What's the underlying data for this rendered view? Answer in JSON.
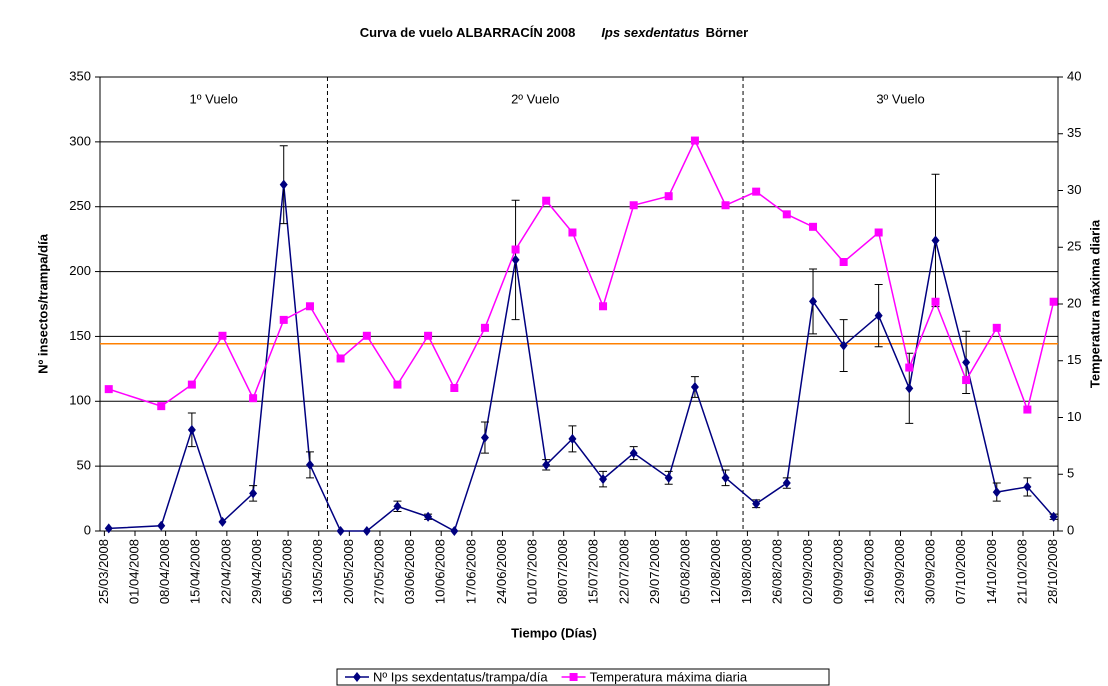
{
  "chart_data": {
    "type": "line",
    "title": "Curva de vuelo ALBARRACÍN 2008",
    "title_species": "Ips sexdentatus",
    "title_author": "Börner",
    "x_label": "Tiempo (Días)",
    "y_label": "Nº insectos/trampa/día",
    "y2_label": "Temperatura máxima diaria",
    "x": [
      "26/03/2008",
      "07/04/2008",
      "14/04/2008",
      "21/04/2008",
      "28/04/2008",
      "05/05/2008",
      "11/05/2008",
      "18/05/2008",
      "24/05/2008",
      "31/05/2008",
      "07/06/2008",
      "13/06/2008",
      "20/06/2008",
      "27/06/2008",
      "04/07/2008",
      "10/07/2008",
      "17/07/2008",
      "24/07/2008",
      "01/08/2008",
      "07/08/2008",
      "14/08/2008",
      "21/08/2008",
      "28/08/2008",
      "03/09/2008",
      "10/09/2008",
      "18/09/2008",
      "25/09/2008",
      "01/10/2008",
      "08/10/2008",
      "15/10/2008",
      "22/10/2008",
      "28/10/2008"
    ],
    "series": [
      {
        "name": "Nº Ips sexdentatus/trampa/día",
        "color": "#000080",
        "marker": "diamond",
        "values": [
          2,
          4,
          78,
          7,
          29,
          267,
          51,
          0,
          0,
          19,
          11,
          0,
          72,
          209,
          51,
          71,
          40,
          60,
          41,
          111,
          41,
          21,
          37,
          177,
          143,
          166,
          110,
          224,
          130,
          30,
          34,
          11
        ],
        "errors": [
          0,
          0,
          13,
          0,
          6,
          30,
          10,
          0,
          0,
          4,
          2,
          0,
          12,
          46,
          4,
          10,
          6,
          5,
          5,
          8,
          6,
          3,
          4,
          25,
          20,
          24,
          27,
          51,
          24,
          7,
          7,
          2
        ]
      },
      {
        "name": "Temperatura máxima diaria",
        "color": "#ff00ff",
        "marker": "square",
        "axis": "y2",
        "values": [
          12.5,
          11.0,
          12.9,
          17.2,
          11.7,
          18.6,
          19.8,
          15.2,
          17.2,
          12.9,
          17.2,
          12.6,
          17.9,
          24.8,
          29.1,
          26.3,
          19.8,
          28.7,
          29.5,
          34.4,
          28.7,
          29.9,
          27.9,
          26.8,
          23.7,
          26.3,
          14.4,
          20.2,
          13.3,
          17.9,
          10.7,
          20.2
        ]
      }
    ],
    "xlim": [
      "24/03/2008",
      "29/10/2008"
    ],
    "xticks": [
      "25/03/2008",
      "01/04/2008",
      "08/04/2008",
      "15/04/2008",
      "22/04/2008",
      "29/04/2008",
      "06/05/2008",
      "13/05/2008",
      "20/05/2008",
      "27/05/2008",
      "03/06/2008",
      "10/06/2008",
      "17/06/2008",
      "24/06/2008",
      "01/07/2008",
      "08/07/2008",
      "15/07/2008",
      "22/07/2008",
      "29/07/2008",
      "05/08/2008",
      "12/08/2008",
      "19/08/2008",
      "26/08/2008",
      "02/09/2008",
      "09/09/2008",
      "16/09/2008",
      "23/09/2008",
      "30/09/2008",
      "07/10/2008",
      "14/10/2008",
      "21/10/2008",
      "28/10/2008"
    ],
    "ylim": [
      0,
      350
    ],
    "yticks": [
      0,
      50,
      100,
      150,
      200,
      250,
      300,
      350
    ],
    "y2lim": [
      0,
      40
    ],
    "y2ticks": [
      0,
      5,
      10,
      15,
      20,
      25,
      30,
      35,
      40
    ],
    "grid": true,
    "reference_line": {
      "value": 16.5,
      "axis": "y2",
      "color": "#ff8000"
    },
    "dividers": [
      "15/05/2008",
      "18/08/2008"
    ],
    "regions": [
      "1º Vuelo",
      "2º Vuelo",
      "3º Vuelo"
    ],
    "legend": "bottom"
  }
}
